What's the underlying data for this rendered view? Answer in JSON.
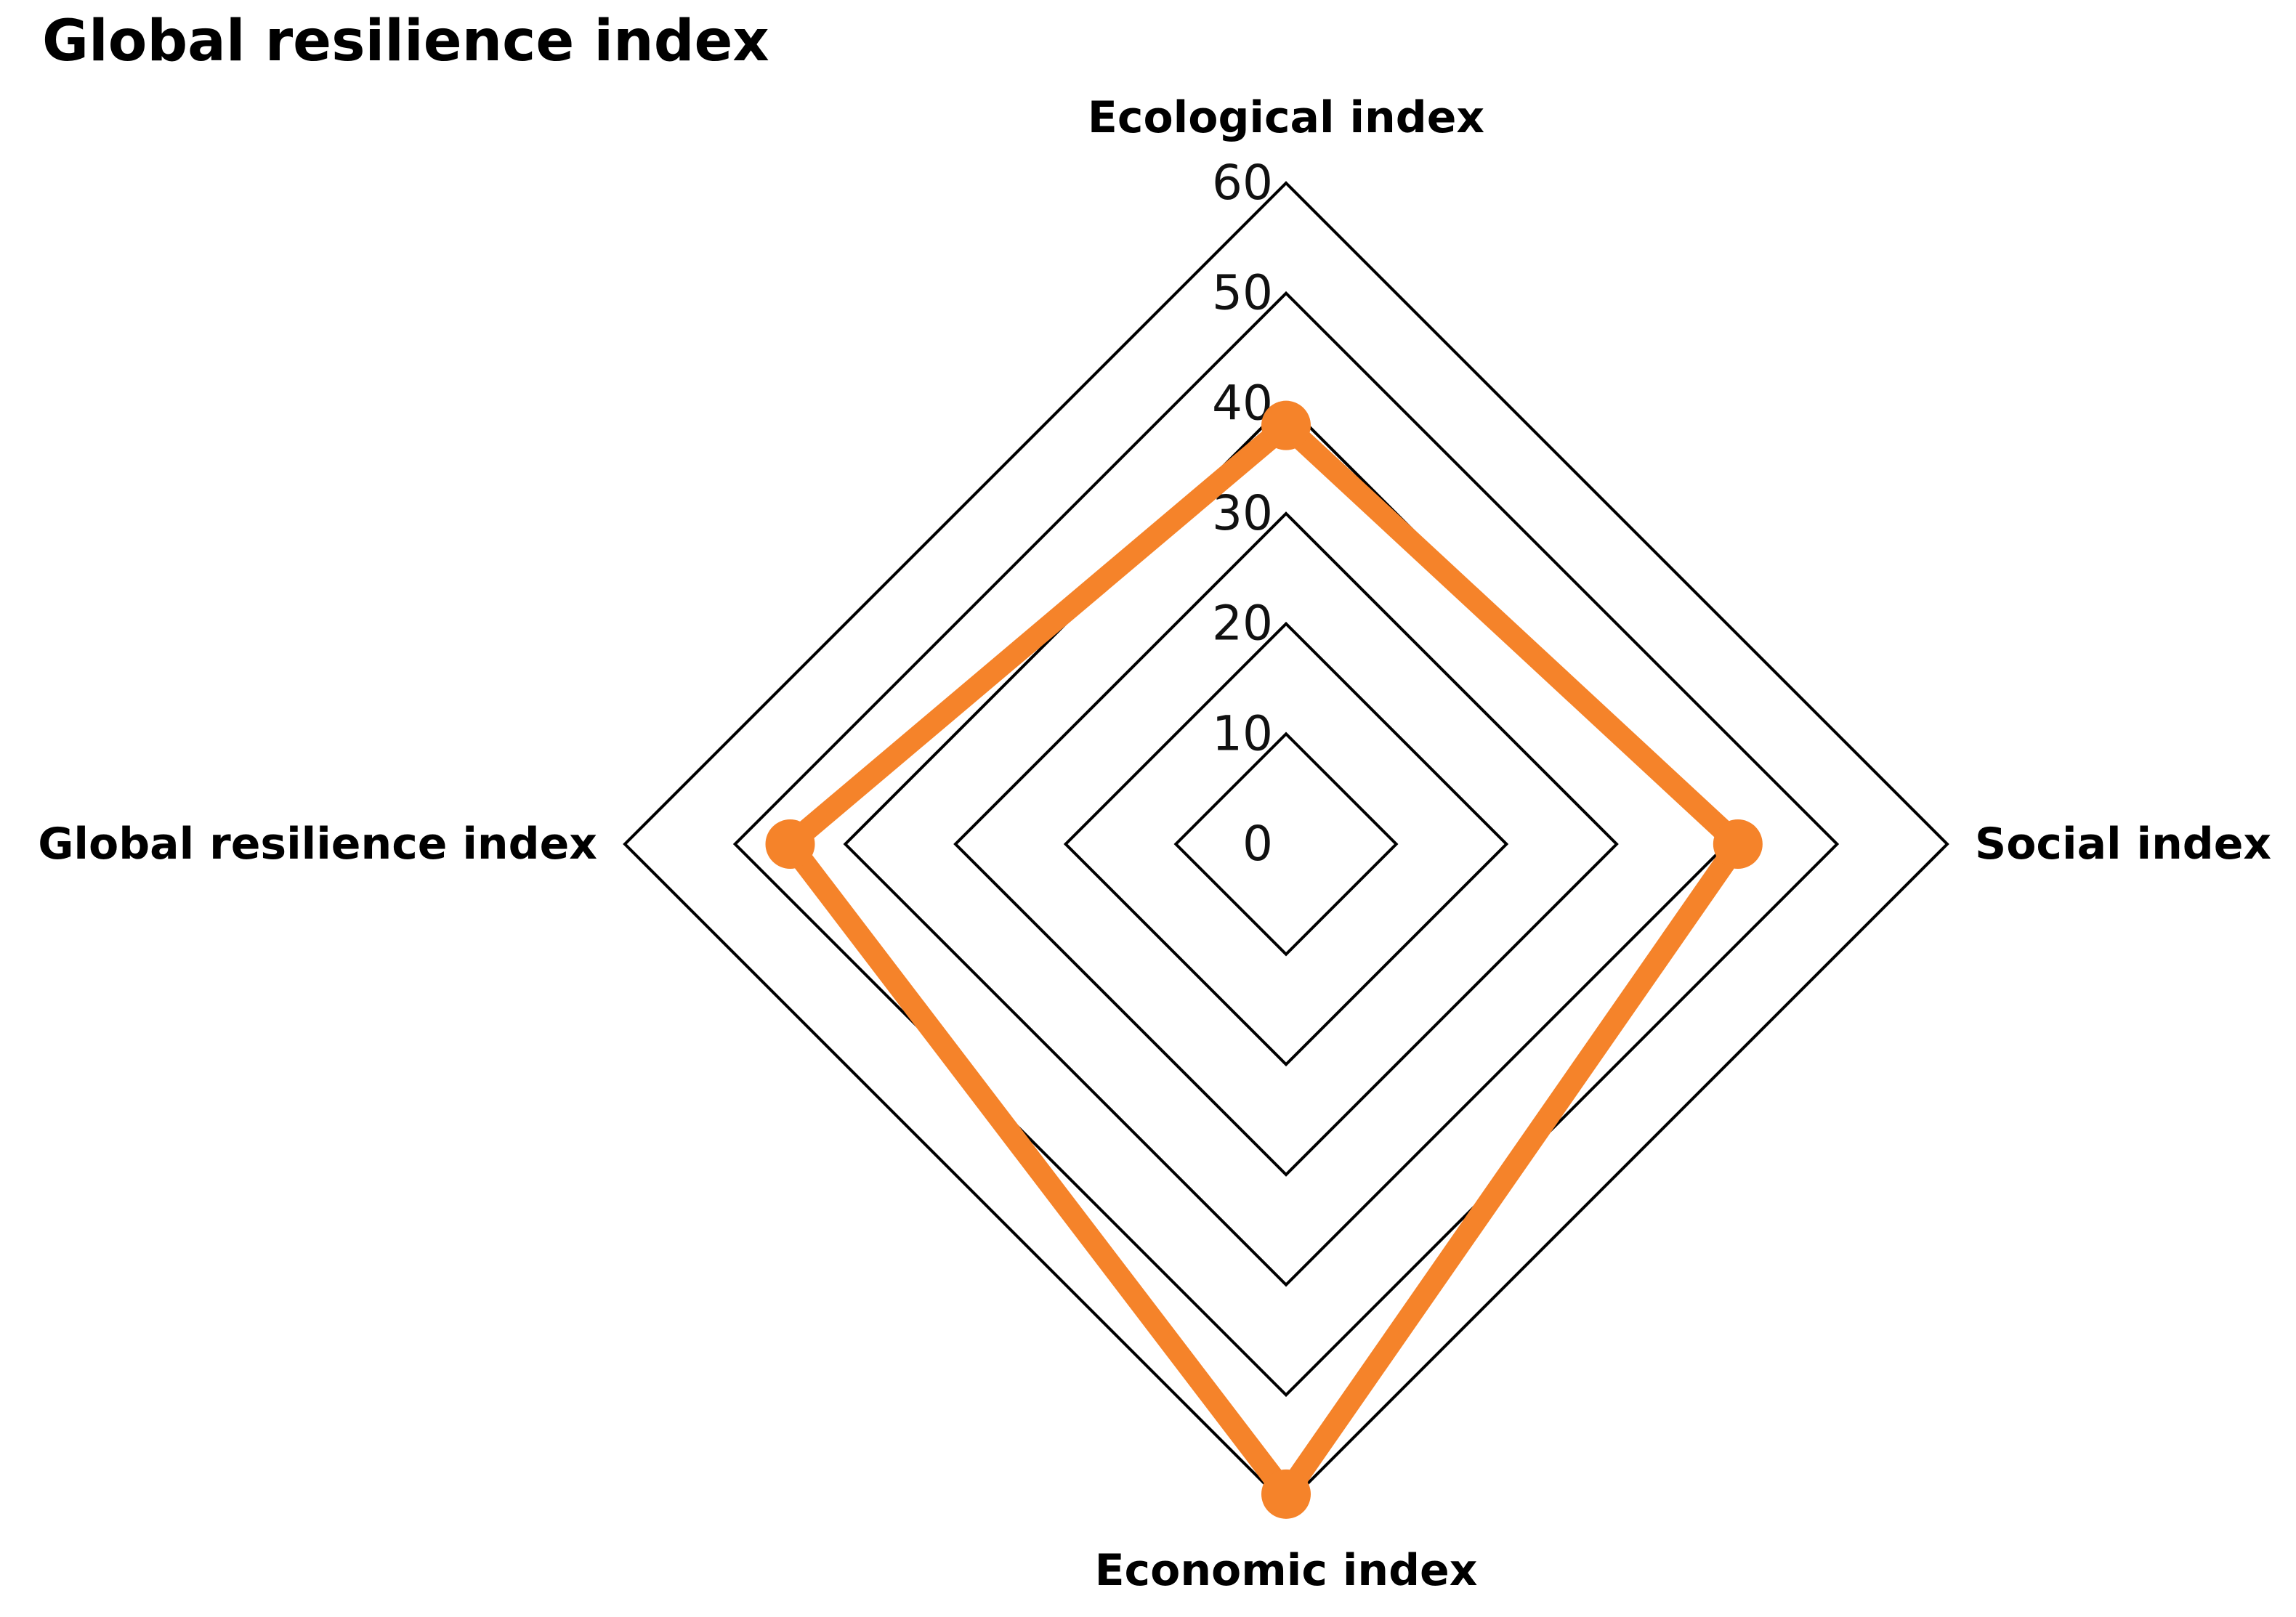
{
  "chart_data": {
    "type": "radar",
    "title": "Global resilience index",
    "axes": [
      "Ecological index",
      "Social index",
      "Economic index",
      "Global resilience index"
    ],
    "rlim": [
      0,
      60
    ],
    "ticks": [
      0,
      10,
      20,
      30,
      40,
      50,
      60
    ],
    "tick_labels": [
      "0",
      "10",
      "20",
      "30",
      "40",
      "50",
      "60"
    ],
    "grid": true,
    "legend": "none",
    "series": [
      {
        "values": [
          38,
          41,
          59,
          45
        ],
        "color": "#F5832A"
      }
    ]
  }
}
